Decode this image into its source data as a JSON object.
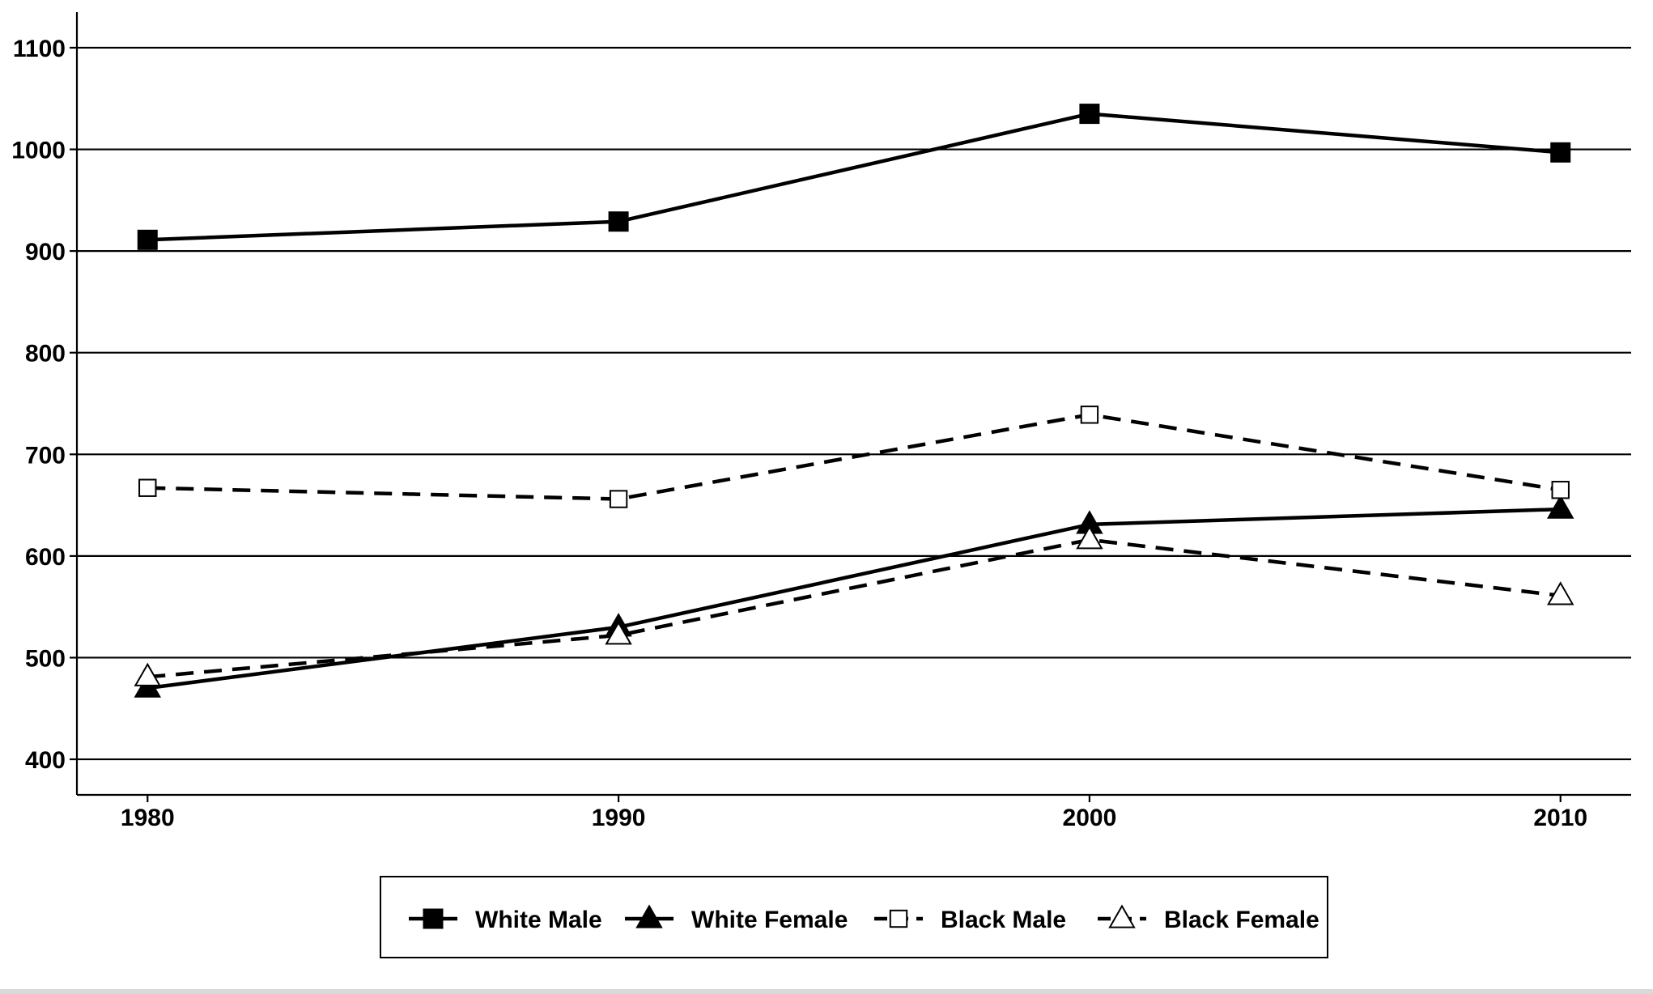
{
  "chart_data": {
    "type": "line",
    "title": "",
    "xlabel": "",
    "ylabel": "",
    "x": [
      1980,
      1990,
      2000,
      2010
    ],
    "xticks": [
      "1980",
      "1990",
      "2000",
      "2010"
    ],
    "yticks": [
      "400",
      "500",
      "600",
      "700",
      "800",
      "900",
      "1000",
      "1100"
    ],
    "ylim": [
      365,
      1135
    ],
    "xlim": [
      1978.5,
      2011.5
    ],
    "grid": "horizontal",
    "legend_position": "bottom",
    "series": [
      {
        "name": "White Male",
        "values": [
          911,
          929,
          1035,
          997
        ],
        "line": "solid",
        "marker": "filled-square",
        "color": "#000000"
      },
      {
        "name": "White Female",
        "values": [
          470,
          530,
          631,
          646
        ],
        "line": "solid",
        "marker": "filled-triangle",
        "color": "#000000"
      },
      {
        "name": "Black Male",
        "values": [
          667,
          656,
          739,
          665
        ],
        "line": "dashed",
        "marker": "open-square",
        "color": "#000000"
      },
      {
        "name": "Black Female",
        "values": [
          481,
          522,
          616,
          561
        ],
        "line": "dashed",
        "marker": "open-triangle",
        "color": "#000000"
      }
    ]
  }
}
